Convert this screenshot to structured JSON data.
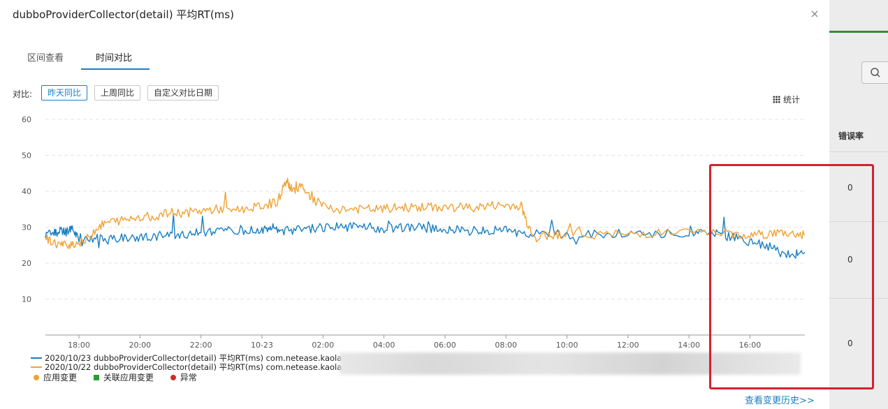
{
  "modal": {
    "title": "dubboProviderCollector(detail) 平均RT(ms)",
    "close_icon": "close-icon"
  },
  "tabs": [
    {
      "label": "区间查看",
      "active": false
    },
    {
      "label": "时间对比",
      "active": true
    }
  ],
  "compare": {
    "label": "对比:",
    "buttons": [
      {
        "label": "昨天同比",
        "active": true
      },
      {
        "label": "上周同比",
        "active": false
      },
      {
        "label": "自定义对比日期",
        "active": false
      }
    ]
  },
  "stats": {
    "label": "统计",
    "icon": "grid-icon"
  },
  "legend": {
    "series": [
      {
        "label": "2020/10/23 dubboProviderCollector(detail) 平均RT(ms) com.netease.kaola",
        "color": "#1a7fc1"
      },
      {
        "label": "2020/10/22 dubboProviderCollector(detail) 平均RT(ms) com.netease.kaola",
        "color": "#f0a235"
      }
    ],
    "markers": [
      {
        "label": "应用变更",
        "color": "#f0a235",
        "shape": "circle"
      },
      {
        "label": "关联应用变更",
        "color": "#2e9a3a",
        "shape": "square"
      },
      {
        "label": "异常",
        "color": "#c9302c",
        "shape": "circle"
      }
    ]
  },
  "history_link": "查看变更历史>>",
  "background": {
    "column_header": "错误率",
    "values": [
      "0",
      "0",
      "0"
    ],
    "search_icon": "search-icon"
  },
  "chart_data": {
    "type": "line",
    "ylim": [
      0,
      60
    ],
    "yticks": [
      "60",
      "50",
      "40",
      "30",
      "20",
      "10"
    ],
    "xticks": [
      "18:00",
      "20:00",
      "22:00",
      "10-23",
      "02:00",
      "04:00",
      "06:00",
      "08:00",
      "10:00",
      "12:00",
      "14:00",
      "16:00"
    ],
    "x_range_hours": [
      16.9,
      41.8
    ],
    "xtick_hours": [
      18,
      20,
      22,
      24,
      26,
      28,
      30,
      32,
      34,
      36,
      38,
      40
    ],
    "grid": "horizontal-dashed",
    "series": [
      {
        "name": "2020/10/23 dubboProviderCollector(detail) 平均RT(ms) com.netease.kaola",
        "color": "#1a7fc1",
        "points": [
          [
            16.9,
            28
          ],
          [
            17.2,
            28.5
          ],
          [
            17.4,
            29
          ],
          [
            17.6,
            28.5
          ],
          [
            17.8,
            30
          ],
          [
            18,
            27
          ],
          [
            18.5,
            27
          ],
          [
            19,
            26.5
          ],
          [
            19.5,
            27
          ],
          [
            20,
            27
          ],
          [
            20.5,
            27.5
          ],
          [
            21,
            28
          ],
          [
            21.5,
            28
          ],
          [
            22,
            28.5
          ],
          [
            22.5,
            28.5
          ],
          [
            23,
            29
          ],
          [
            23.5,
            29
          ],
          [
            24,
            29
          ],
          [
            24.3,
            30
          ],
          [
            24.6,
            29
          ],
          [
            25,
            29
          ],
          [
            25.5,
            29.5
          ],
          [
            26,
            30
          ],
          [
            26.5,
            30
          ],
          [
            27,
            30
          ],
          [
            27.5,
            30
          ],
          [
            28,
            29.5
          ],
          [
            28.5,
            30
          ],
          [
            29,
            30
          ],
          [
            29.5,
            29.5
          ],
          [
            30,
            29.5
          ],
          [
            30.5,
            29.5
          ],
          [
            31,
            29
          ],
          [
            31.5,
            29
          ],
          [
            32,
            29
          ],
          [
            32.5,
            28.5
          ],
          [
            33,
            28
          ],
          [
            34,
            28
          ],
          [
            35,
            28
          ],
          [
            36,
            28
          ],
          [
            37,
            28
          ],
          [
            38,
            28.5
          ],
          [
            38.5,
            28
          ],
          [
            39,
            28
          ],
          [
            39.5,
            27
          ],
          [
            40,
            26
          ],
          [
            40.5,
            25
          ],
          [
            41,
            23
          ],
          [
            41.5,
            22.5
          ],
          [
            41.8,
            23
          ]
        ]
      },
      {
        "name": "2020/10/22 dubboProviderCollector(detail) 平均RT(ms) com.netease.kaola",
        "color": "#f0a235",
        "points": [
          [
            16.9,
            27
          ],
          [
            17.2,
            25.5
          ],
          [
            17.5,
            25
          ],
          [
            17.8,
            25.5
          ],
          [
            18.2,
            26
          ],
          [
            18.6,
            30
          ],
          [
            19,
            31.5
          ],
          [
            19.5,
            32
          ],
          [
            20,
            33
          ],
          [
            20.5,
            33
          ],
          [
            21,
            34
          ],
          [
            21.5,
            34
          ],
          [
            22,
            34.5
          ],
          [
            22.5,
            35
          ],
          [
            23,
            35
          ],
          [
            23.5,
            35
          ],
          [
            24,
            36
          ],
          [
            24.5,
            37
          ],
          [
            24.8,
            43
          ],
          [
            25,
            40
          ],
          [
            25.3,
            42
          ],
          [
            25.6,
            38
          ],
          [
            26,
            36
          ],
          [
            26.5,
            35
          ],
          [
            27,
            35
          ],
          [
            27.5,
            35
          ],
          [
            28,
            35
          ],
          [
            28.5,
            35.5
          ],
          [
            29,
            35.5
          ],
          [
            29.5,
            35.5
          ],
          [
            30,
            35.5
          ],
          [
            30.5,
            35.5
          ],
          [
            31,
            35.5
          ],
          [
            31.5,
            36
          ],
          [
            32,
            36
          ],
          [
            32.5,
            36
          ],
          [
            32.7,
            31
          ],
          [
            33,
            27
          ],
          [
            33.5,
            28
          ],
          [
            34,
            28
          ],
          [
            35,
            28
          ],
          [
            36,
            28
          ],
          [
            37,
            28.5
          ],
          [
            38,
            28.5
          ],
          [
            39,
            28.5
          ],
          [
            39.5,
            28
          ],
          [
            40,
            28
          ],
          [
            40.5,
            28
          ],
          [
            41,
            28.5
          ],
          [
            41.5,
            28
          ],
          [
            41.8,
            28
          ]
        ]
      }
    ]
  }
}
